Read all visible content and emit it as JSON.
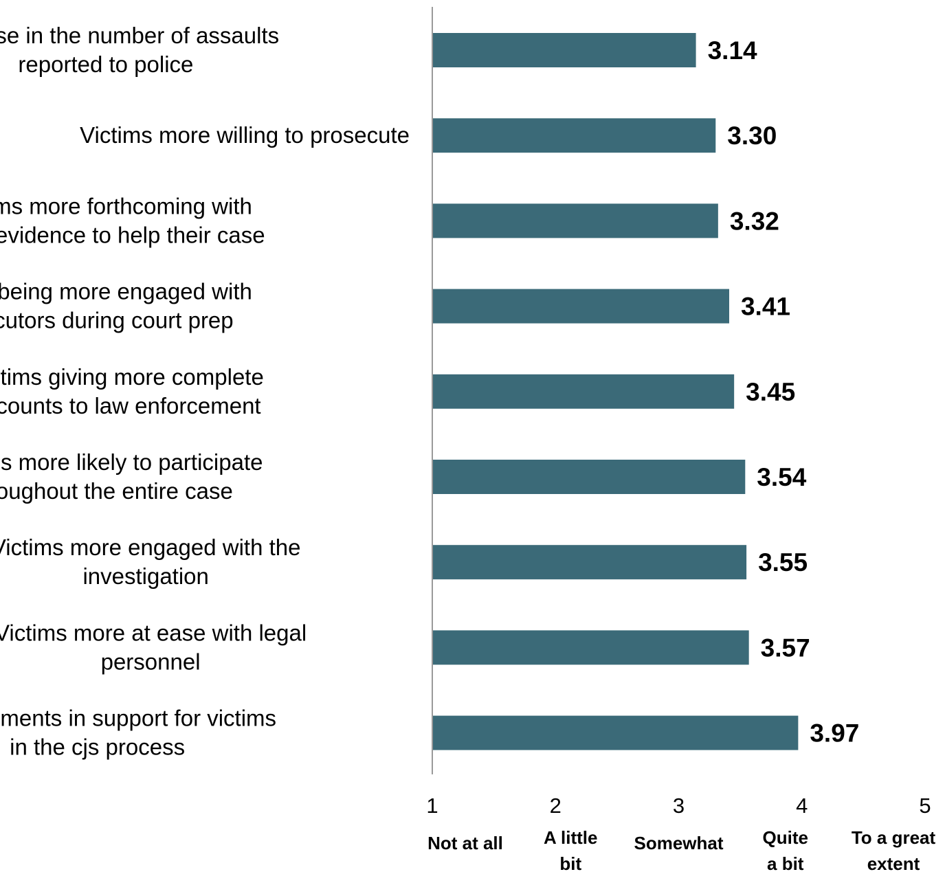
{
  "chart_data": {
    "type": "bar",
    "orientation": "horizontal",
    "title": "",
    "xlabel": "",
    "ylabel": "",
    "xlim": [
      1,
      5
    ],
    "grid": false,
    "legend": "none",
    "bar_color": "#3B6A78",
    "axis_color": "#999999",
    "categories": [
      [
        "Increase in the number of assaults",
        "reported to police"
      ],
      [
        "Victims more willing to prosecute"
      ],
      [
        "Victims more forthcoming with",
        "other evidence to help their case"
      ],
      [
        "Victims being more engaged with",
        "prosecutors during court prep"
      ],
      [
        "Victims giving more complete",
        "accounts to law enforcement"
      ],
      [
        "Victims more likely to participate",
        "throughout the entire case"
      ],
      [
        "Victims more engaged with the",
        "investigation"
      ],
      [
        "Victims more at ease with legal",
        "personnel"
      ],
      [
        "Improvements in support for victims",
        "in the cjs process"
      ]
    ],
    "values": [
      3.14,
      3.3,
      3.32,
      3.41,
      3.45,
      3.54,
      3.55,
      3.57,
      3.97
    ],
    "value_labels": [
      "3.14",
      "3.30",
      "3.32",
      "3.41",
      "3.45",
      "3.54",
      "3.55",
      "3.57",
      "3.97"
    ],
    "ticks": [
      {
        "value": 1,
        "label": "1",
        "desc": [
          "Not at all"
        ]
      },
      {
        "value": 2,
        "label": "2",
        "desc": [
          "A little",
          "bit"
        ]
      },
      {
        "value": 3,
        "label": "3",
        "desc": [
          "Somewhat"
        ]
      },
      {
        "value": 4,
        "label": "4",
        "desc": [
          "Quite",
          "a bit"
        ]
      },
      {
        "value": 5,
        "label": "5",
        "desc": [
          "To a great",
          "extent"
        ]
      }
    ]
  }
}
